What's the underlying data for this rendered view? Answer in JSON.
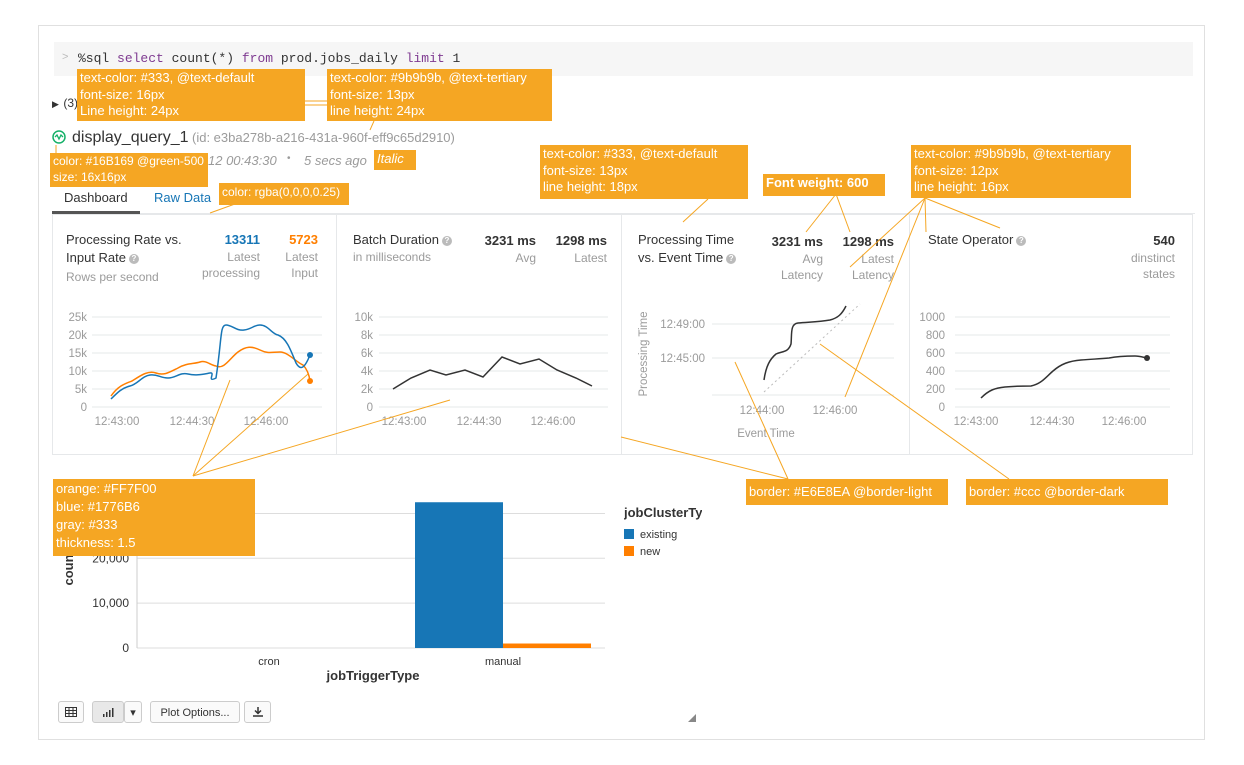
{
  "command": {
    "prompt": ">",
    "kw_select": "select",
    "expr1": " count(*) ",
    "kw_from": "from",
    "expr2": " prod.jobs_daily ",
    "kw_limit": "limit",
    "expr3": " 1",
    "magic": "%sql "
  },
  "results_toggle": "(3)",
  "query": {
    "name": "display_query_1",
    "id": "(id: e3ba278b-a216-431a-960f-eff9c65d2910)",
    "timestamp": "12 00:43:30",
    "separator": "•",
    "ago": "5 secs ago"
  },
  "tabs": {
    "dashboard": "Dashboard",
    "raw": "Raw Data"
  },
  "cards": {
    "rate": {
      "title1": "Processing Rate vs.",
      "title2": "Input Rate",
      "subtitle": "Rows per second",
      "v1": "13311",
      "l1a": "Latest",
      "l1b": "processing",
      "v2": "5723",
      "l2a": "Latest",
      "l2b": "Input"
    },
    "batch": {
      "title": "Batch Duration",
      "subtitle": "in milliseconds",
      "v1": "3231 ms",
      "l1": "Avg",
      "v2": "1298 ms",
      "l2": "Latest"
    },
    "proc": {
      "title1": "Processing Time",
      "title2": "vs. Event Time",
      "v1": "3231 ms",
      "l1a": "Avg",
      "l1b": "Latency",
      "v2": "1298 ms",
      "l2a": "Latest",
      "l2b": "Latency",
      "yaxis": "Processing Time",
      "xaxis": "Event Time"
    },
    "state": {
      "title": "State Operator",
      "v1": "540",
      "l1a": "dinstinct",
      "l1b": "states"
    }
  },
  "mini_charts": {
    "rate": {
      "yticks": [
        "25k",
        "20k",
        "15k",
        "10k",
        "5k",
        "0"
      ],
      "xticks": [
        "12:43:00",
        "12:44:30",
        "12:46:00"
      ]
    },
    "batch": {
      "yticks": [
        "10k",
        "8k",
        "6k",
        "4k",
        "2k",
        "0"
      ],
      "xticks": [
        "12:43:00",
        "12:44:30",
        "12:46:00"
      ]
    },
    "proc": {
      "yticks": [
        "12:49:00",
        "12:45:00"
      ],
      "xticks": [
        "12:44:00",
        "12:46:00"
      ]
    },
    "state": {
      "yticks": [
        "1000",
        "800",
        "600",
        "400",
        "200",
        "0"
      ],
      "xticks": [
        "12:43:00",
        "12:44:30",
        "12:46:00"
      ]
    }
  },
  "chart_data": {
    "type": "bar",
    "categories": [
      "cron",
      "manual"
    ],
    "series": [
      {
        "name": "existing",
        "values": [
          0,
          32500
        ]
      },
      {
        "name": "new",
        "values": [
          0,
          1000
        ]
      }
    ],
    "title": "",
    "xlabel": "jobTriggerType",
    "ylabel": "count",
    "ylabel_visible": "coun",
    "yticks": [
      "0",
      "10,000",
      "20,000"
    ],
    "ylim": [
      0,
      33000
    ],
    "legend_title": "jobClusterTy",
    "colors": {
      "existing": "#1776b6",
      "new": "#ff7f00"
    }
  },
  "toolbar": {
    "plot_options": "Plot Options...",
    "dropdown": "▾"
  },
  "annotations": {
    "a1": [
      "text-color: #333, @text-default",
      "font-size: 16px",
      "Line height: 24px"
    ],
    "a2": [
      "text-color: #9b9b9b, @text-tertiary",
      "font-size: 13px",
      "line height: 24px"
    ],
    "a3": [
      "color: #16B169 @green-500",
      "size: 16x16px"
    ],
    "a4": "Italic",
    "a5": "color: rgba(0,0,0,0.25)",
    "a6": [
      "text-color: #333, @text-default",
      "font-size: 13px",
      "line height: 18px"
    ],
    "a7": "Font weight: 600",
    "a8": [
      "text-color: #9b9b9b, @text-tertiary",
      "font-size: 12px",
      "line height: 16px"
    ],
    "a9": [
      "orange: #FF7F00",
      "blue: #1776B6",
      "gray: #333",
      "thickness: 1.5"
    ],
    "a10": "border: #E6E8EA @border-light",
    "a11": "border: #ccc @border-dark"
  },
  "colors": {
    "green": "#16b169",
    "blue": "#1776b6",
    "orange": "#ff7f00",
    "gray": "#333333",
    "annotation": "#f5a623"
  }
}
